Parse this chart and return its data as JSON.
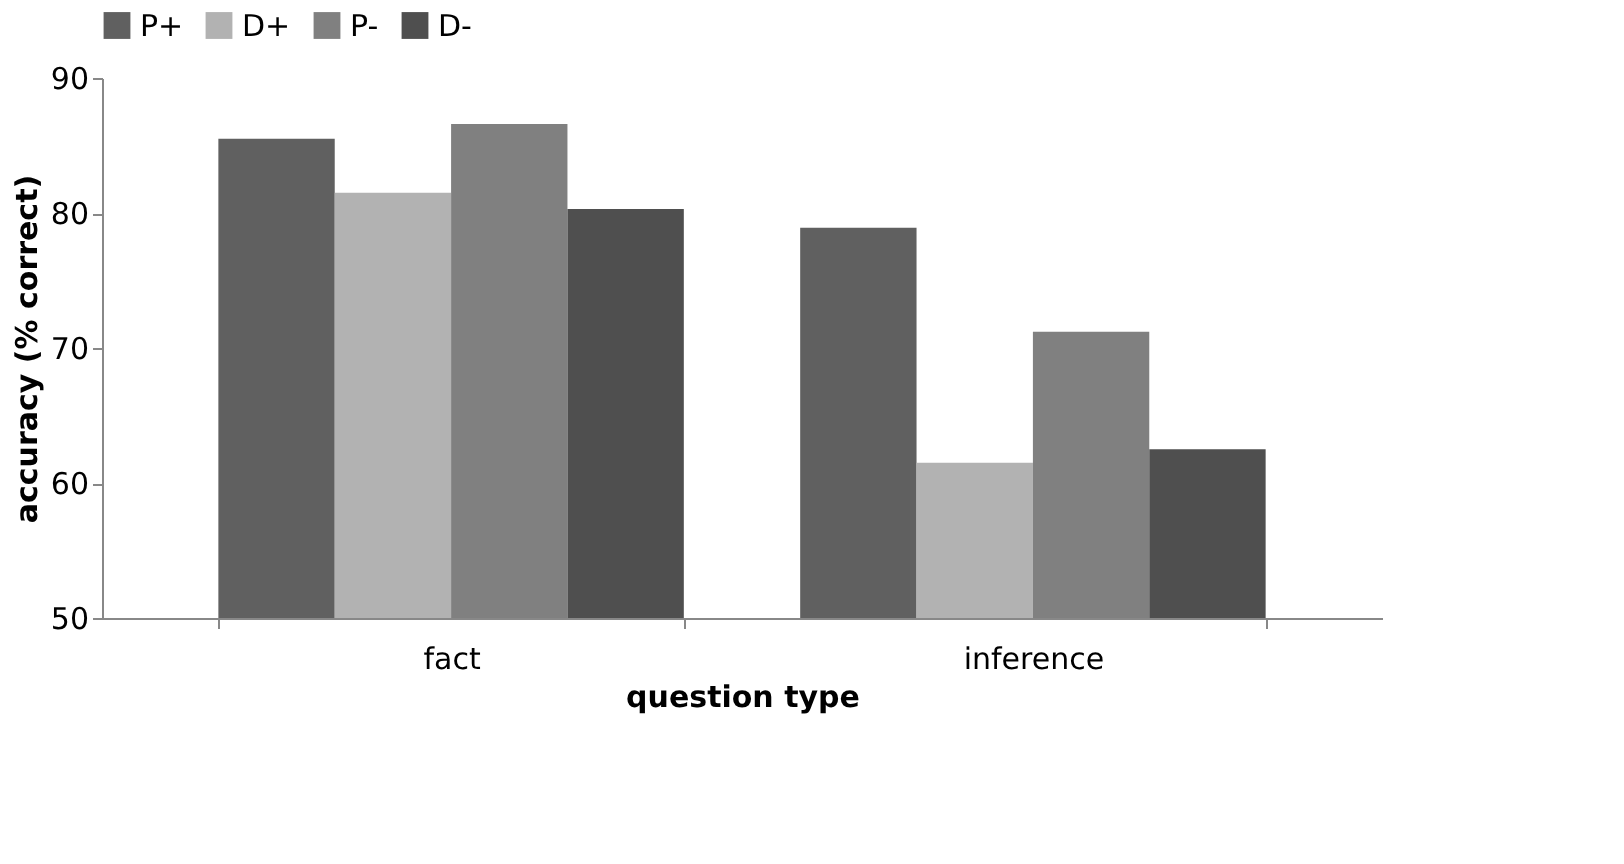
{
  "chart_data": {
    "type": "bar",
    "xlabel": "question type",
    "ylabel": "accuracy (% correct)",
    "categories": [
      "fact",
      "inference"
    ],
    "series": [
      {
        "name": "P+",
        "color": "#606060",
        "values": [
          85.5,
          78.9
        ]
      },
      {
        "name": "D+",
        "color": "#b2b2b2",
        "values": [
          81.5,
          61.5
        ]
      },
      {
        "name": "P-",
        "color": "#808080",
        "values": [
          86.6,
          71.2
        ]
      },
      {
        "name": "D-",
        "color": "#4f4f4f",
        "values": [
          80.3,
          62.5
        ]
      }
    ],
    "ylim": [
      50,
      90
    ],
    "yticks": [
      50,
      60,
      70,
      80,
      90
    ],
    "grid": false,
    "legend": "top"
  }
}
